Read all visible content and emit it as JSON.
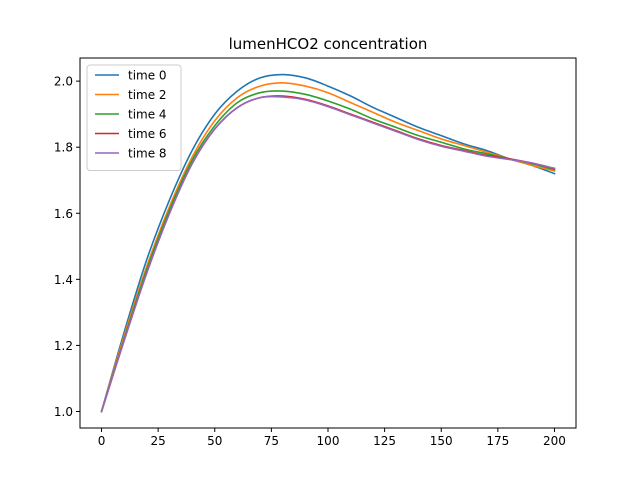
{
  "chart_data": {
    "type": "line",
    "title": "lumenHCO2 concentration",
    "xlabel": "",
    "ylabel": "",
    "xlim": [
      -9.5,
      209.5
    ],
    "ylim": [
      0.95,
      2.07
    ],
    "xticks": [
      0,
      25,
      50,
      75,
      100,
      125,
      150,
      175,
      200
    ],
    "yticks": [
      1.0,
      1.2,
      1.4,
      1.6,
      1.8,
      2.0
    ],
    "x": [
      0,
      10,
      20,
      30,
      40,
      50,
      60,
      70,
      80,
      90,
      100,
      110,
      120,
      130,
      140,
      150,
      160,
      170,
      180,
      190,
      200
    ],
    "legend_position": "upper-left",
    "grid": false,
    "series": [
      {
        "name": "time 0",
        "color": "#1f77b4",
        "values": [
          1.0,
          1.24,
          1.46,
          1.64,
          1.79,
          1.9,
          1.97,
          2.01,
          2.02,
          2.01,
          1.985,
          1.955,
          1.92,
          1.89,
          1.86,
          1.835,
          1.81,
          1.79,
          1.765,
          1.745,
          1.72
        ]
      },
      {
        "name": "time 2",
        "color": "#ff7f0e",
        "values": [
          1.0,
          1.23,
          1.44,
          1.62,
          1.77,
          1.88,
          1.95,
          1.985,
          1.995,
          1.985,
          1.965,
          1.935,
          1.905,
          1.875,
          1.85,
          1.825,
          1.805,
          1.785,
          1.765,
          1.745,
          1.728
        ]
      },
      {
        "name": "time 4",
        "color": "#2ca02c",
        "values": [
          1.0,
          1.22,
          1.43,
          1.61,
          1.76,
          1.865,
          1.935,
          1.965,
          1.97,
          1.96,
          1.94,
          1.915,
          1.885,
          1.86,
          1.835,
          1.815,
          1.795,
          1.78,
          1.765,
          1.75,
          1.732
        ]
      },
      {
        "name": "time 6",
        "color": "#d62728",
        "values": [
          1.0,
          1.215,
          1.42,
          1.6,
          1.75,
          1.855,
          1.92,
          1.95,
          1.955,
          1.945,
          1.925,
          1.9,
          1.875,
          1.85,
          1.825,
          1.805,
          1.79,
          1.775,
          1.765,
          1.752,
          1.735
        ]
      },
      {
        "name": "time 8",
        "color": "#9467bd",
        "values": [
          1.0,
          1.215,
          1.42,
          1.6,
          1.75,
          1.855,
          1.92,
          1.95,
          1.952,
          1.943,
          1.923,
          1.898,
          1.873,
          1.848,
          1.823,
          1.803,
          1.788,
          1.773,
          1.763,
          1.752,
          1.736
        ]
      }
    ]
  }
}
